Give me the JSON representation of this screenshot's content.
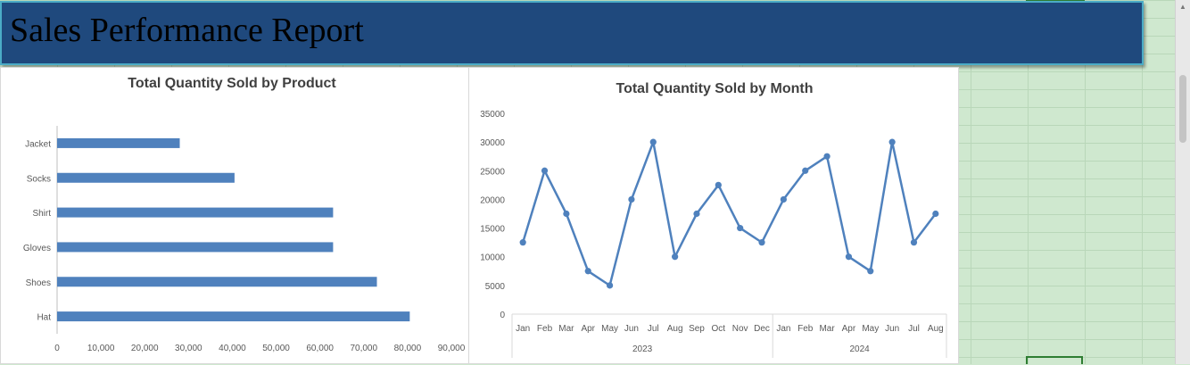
{
  "banner": {
    "title": "Sales Performance Report"
  },
  "colors": {
    "banner": "#1f497d",
    "banner_border": "#4bacc6",
    "series": "#4f81bd",
    "sheet": "#cfe8cf"
  },
  "chart_data": [
    {
      "type": "bar",
      "orientation": "horizontal",
      "title": "Total Quantity Sold by Product",
      "categories": [
        "Jacket",
        "Socks",
        "Shirt",
        "Gloves",
        "Shoes",
        "Hat"
      ],
      "values": [
        28000,
        40500,
        63000,
        63000,
        73000,
        80500
      ],
      "xlim": [
        0,
        90000
      ],
      "x_ticks": [
        "0",
        "10,000",
        "20,000",
        "30,000",
        "40,000",
        "50,000",
        "60,000",
        "70,000",
        "80,000",
        "90,000"
      ],
      "grid": false,
      "legend": "none"
    },
    {
      "type": "line",
      "title": "Total Quantity Sold by Month",
      "x_months": [
        "Jan",
        "Feb",
        "Mar",
        "Apr",
        "May",
        "Jun",
        "Jul",
        "Aug",
        "Sep",
        "Oct",
        "Nov",
        "Dec",
        "Jan",
        "Feb",
        "Mar",
        "Apr",
        "May",
        "Jun",
        "Jul",
        "Aug"
      ],
      "x_groups": [
        {
          "label": "2023",
          "count": 12
        },
        {
          "label": "2024",
          "count": 8
        }
      ],
      "values": [
        12500,
        25000,
        17500,
        7500,
        5000,
        20000,
        30000,
        10000,
        17500,
        22500,
        15000,
        12500,
        20000,
        25000,
        27500,
        10000,
        7500,
        30000,
        12500,
        17500
      ],
      "ylim": [
        0,
        35000
      ],
      "y_ticks": [
        "0",
        "5000",
        "10000",
        "15000",
        "20000",
        "25000",
        "30000",
        "35000"
      ],
      "grid": false,
      "legend": "none",
      "markers": true
    }
  ]
}
